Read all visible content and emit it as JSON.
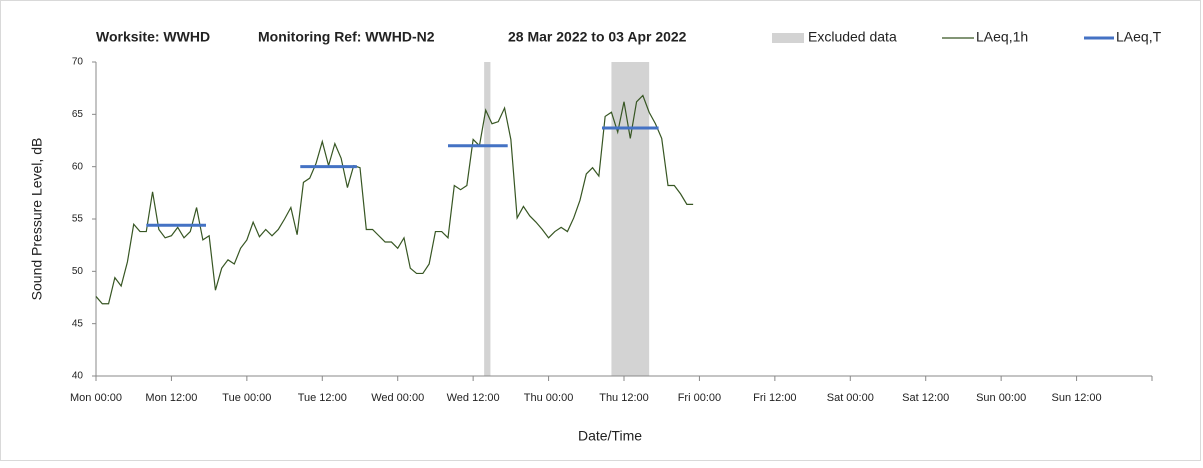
{
  "chart_data": {
    "type": "line",
    "title": [
      "Worksite: WWHD",
      "Monitoring Ref: WWHD-N2",
      "28 Mar 2022 to 03 Apr 2022"
    ],
    "xlabel": "Date/Time",
    "ylabel": "Sound Pressure Level, dB",
    "xlim": [
      0,
      168
    ],
    "ylim": [
      40,
      70
    ],
    "yticks": [
      40,
      45,
      50,
      55,
      60,
      65,
      70
    ],
    "xticks": [
      {
        "value": 0,
        "label": "Mon 00:00"
      },
      {
        "value": 12,
        "label": "Mon 12:00"
      },
      {
        "value": 24,
        "label": "Tue 00:00"
      },
      {
        "value": 36,
        "label": "Tue 12:00"
      },
      {
        "value": 48,
        "label": "Wed 00:00"
      },
      {
        "value": 60,
        "label": "Wed 12:00"
      },
      {
        "value": 72,
        "label": "Thu 00:00"
      },
      {
        "value": 84,
        "label": "Thu 12:00"
      },
      {
        "value": 96,
        "label": "Fri 00:00"
      },
      {
        "value": 108,
        "label": "Fri 12:00"
      },
      {
        "value": 120,
        "label": "Sat 00:00"
      },
      {
        "value": 132,
        "label": "Sat 12:00"
      },
      {
        "value": 144,
        "label": "Sun 00:00"
      },
      {
        "value": 156,
        "label": "Sun 12:00"
      }
    ],
    "x": [
      0,
      1,
      2,
      3,
      4,
      5,
      6,
      7,
      8,
      9,
      10,
      11,
      12,
      13,
      14,
      15,
      16,
      17,
      18,
      19,
      20,
      21,
      22,
      23,
      24,
      25,
      26,
      27,
      28,
      29,
      30,
      31,
      32,
      33,
      34,
      35,
      36,
      37,
      38,
      39,
      40,
      41,
      42,
      43,
      44,
      45,
      46,
      47,
      48,
      49,
      50,
      51,
      52,
      53,
      54,
      55,
      56,
      57,
      58,
      59,
      60,
      61,
      62,
      63,
      64,
      65,
      66,
      67,
      68,
      69,
      70,
      71,
      72,
      73,
      74,
      75,
      76,
      77,
      78,
      79,
      80,
      81,
      82,
      83,
      84,
      85,
      86,
      87,
      88,
      89,
      90,
      91,
      92,
      93,
      94,
      95
    ],
    "series": [
      {
        "name": "LAeq,1h",
        "color": "#375623",
        "values": [
          47.6,
          46.9,
          46.9,
          49.4,
          48.6,
          50.9,
          54.5,
          53.8,
          53.8,
          57.6,
          54.0,
          53.2,
          53.4,
          54.2,
          53.2,
          53.8,
          56.1,
          53.0,
          53.4,
          48.2,
          50.3,
          51.1,
          50.7,
          52.2,
          53.0,
          54.7,
          53.3,
          54.0,
          53.4,
          54.0,
          55.0,
          56.1,
          53.5,
          58.5,
          58.9,
          60.3,
          62.4,
          60.1,
          62.2,
          60.8,
          58.0,
          60.1,
          59.9,
          54.0,
          54.0,
          53.4,
          52.8,
          52.8,
          52.2,
          53.2,
          50.3,
          49.8,
          49.8,
          50.7,
          53.8,
          53.8,
          53.2,
          58.2,
          57.8,
          58.2,
          62.6,
          62.0,
          65.4,
          64.1,
          64.3,
          65.6,
          62.6,
          55.1,
          56.2,
          55.3,
          54.7,
          54.0,
          53.2,
          53.8,
          54.2,
          53.8,
          55.1,
          56.8,
          59.3,
          59.9,
          59.1,
          64.8,
          65.2,
          63.3,
          66.2,
          62.7,
          66.2,
          66.8,
          65.2,
          64.1,
          62.7,
          58.2,
          58.2,
          57.4,
          56.4,
          56.4
        ]
      }
    ],
    "levels": {
      "name": "LAeq,T",
      "color": "#4472c4",
      "x_ranges": [
        [
          8,
          17.5
        ],
        [
          32.5,
          41.5
        ],
        [
          56,
          65.5
        ],
        [
          80.5,
          89.5
        ]
      ],
      "values": [
        54.4,
        60.0,
        62.0,
        63.7
      ]
    },
    "excluded": {
      "name": "Excluded data",
      "color": "#d3d3d3",
      "ranges": [
        [
          61.75,
          62.75
        ],
        [
          82,
          88
        ]
      ]
    }
  }
}
